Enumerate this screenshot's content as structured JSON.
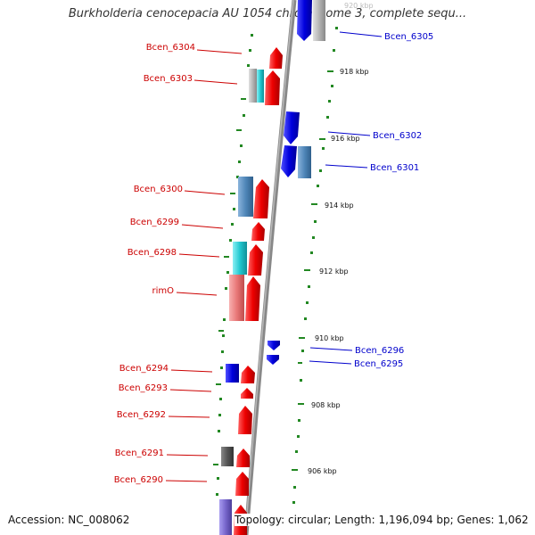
{
  "title": "Burkholderia cenocepacia AU 1054 chromosome 3, complete sequ...",
  "accession": "Accession: NC_008062",
  "topology": "Topology: circular; Length: 1,196,094 bp; Genes: 1,062",
  "colors": {
    "forward_label": "#cc0000",
    "reverse_label": "#0000cc",
    "red": "#ee0000",
    "blue": "#0000dd",
    "steel_blue": "#4f86b8",
    "cyan": "#22c8d0",
    "pink": "#e87878",
    "gray": "#b4b4b4",
    "dark_gray": "#555555",
    "purple": "#7766cc",
    "tick_green": "#228822",
    "backbone": "#888888"
  },
  "top_tick_fragment": "920 kbp",
  "ticks": [
    {
      "label": "918 kbp"
    },
    {
      "label": "916 kbp"
    },
    {
      "label": "914 kbp"
    },
    {
      "label": "912 kbp"
    },
    {
      "label": "910 kbp"
    },
    {
      "label": "908 kbp"
    },
    {
      "label": "906 kbp"
    }
  ],
  "gene_labels_forward": [
    "Bcen_6304",
    "Bcen_6303",
    "Bcen_6300",
    "Bcen_6299",
    "Bcen_6298",
    "rimO",
    "Bcen_6294",
    "Bcen_6293",
    "Bcen_6292",
    "Bcen_6291",
    "Bcen_6290"
  ],
  "gene_labels_reverse": [
    "Bcen_6305",
    "Bcen_6302",
    "Bcen_6301",
    "Bcen_6296",
    "Bcen_6295"
  ]
}
